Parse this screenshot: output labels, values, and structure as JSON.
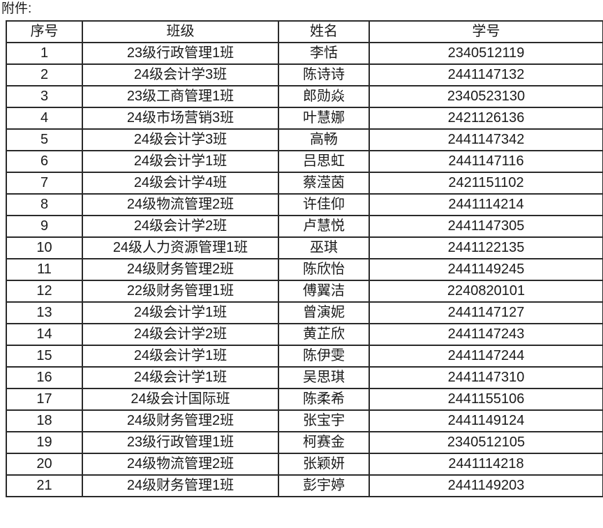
{
  "caption": "附件:",
  "headers": [
    "序号",
    "班级",
    "姓名",
    "学号"
  ],
  "rows": [
    [
      "1",
      "23级行政管理1班",
      "李恬",
      "2340512119"
    ],
    [
      "2",
      "24级会计学3班",
      "陈诗诗",
      "2441147132"
    ],
    [
      "3",
      "23级工商管理1班",
      "郎勋焱",
      "2340523130"
    ],
    [
      "4",
      "24级市场营销3班",
      "叶慧娜",
      "2421126136"
    ],
    [
      "5",
      "24级会计学3班",
      "高畅",
      "2441147342"
    ],
    [
      "6",
      "24级会计学1班",
      "吕思虹",
      "2441147116"
    ],
    [
      "7",
      "24级会计学4班",
      "蔡滢茵",
      "2421151102"
    ],
    [
      "8",
      "24级物流管理2班",
      "许佳仰",
      "2441114214"
    ],
    [
      "9",
      "24级会计学2班",
      "卢慧悦",
      "2441147305"
    ],
    [
      "10",
      "24级人力资源管理1班",
      "巫琪",
      "2441122135"
    ],
    [
      "11",
      "24级财务管理2班",
      "陈欣怡",
      "2441149245"
    ],
    [
      "12",
      "22级财务管理1班",
      "傅翼洁",
      "2240820101"
    ],
    [
      "13",
      "24级会计学1班",
      "曾演妮",
      "2441147127"
    ],
    [
      "14",
      "24级会计学2班",
      "黄芷欣",
      "2441147243"
    ],
    [
      "15",
      "24级会计学1班",
      "陈伊雯",
      "2441147244"
    ],
    [
      "16",
      "24级会计学1班",
      "吴思琪",
      "2441147310"
    ],
    [
      "17",
      "24级会计国际班",
      "陈柔希",
      "2441155106"
    ],
    [
      "18",
      "24级财务管理2班",
      "张宝宇",
      "2441149124"
    ],
    [
      "19",
      "23级行政管理1班",
      "柯赛金",
      "2340512105"
    ],
    [
      "20",
      "24级物流管理2班",
      "张颖妍",
      "2441114218"
    ],
    [
      "21",
      "24级财务管理1班",
      "彭宇婷",
      "2441149203"
    ]
  ]
}
